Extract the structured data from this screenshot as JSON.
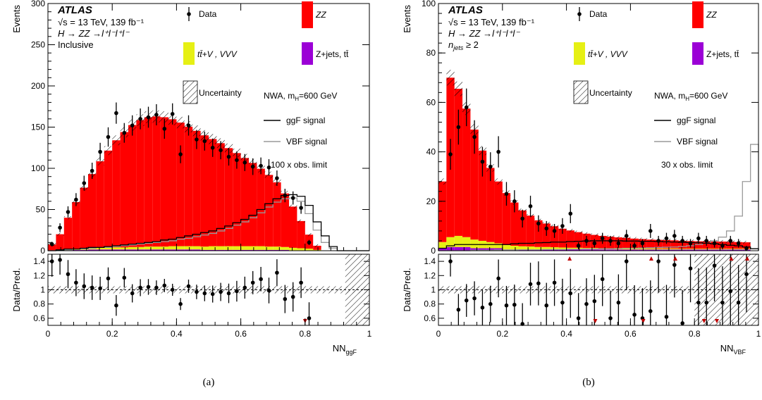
{
  "colors": {
    "zz": "#ff0000",
    "ttv": "#e6f014",
    "zjets": "#9b00d6",
    "ggf": "#000000",
    "vbf": "#9a9a9a"
  },
  "captions": [
    "(a)",
    "(b)"
  ],
  "chart_data": [
    {
      "type": "bar",
      "panel": "a",
      "atlas_label": "ATLAS",
      "energy_label": "√s = 13 TeV, 139 fb⁻¹",
      "process_label": "H → ZZ →l⁺l⁻l⁺l⁻",
      "region_label": "Inclusive",
      "model_label": "NWA, m_H=600 GeV",
      "model_label_parts": [
        "NWA, m",
        "H",
        "=600 GeV"
      ],
      "scale_label": "100 x obs. limit",
      "legend": {
        "data": "Data",
        "zz": "ZZ",
        "ttv": "tt̄+V , VVV",
        "zjets": "Z+jets, tt̄",
        "uncertainty": "Uncertainty",
        "ggf": "ggF signal",
        "vbf": "VBF signal"
      },
      "xlabel": "NN",
      "xlabel_sub": "ggF",
      "ylabel": "Events",
      "ratio_ylabel": "Data/Pred.",
      "xlim": [
        0,
        1
      ],
      "ylim": [
        0,
        300
      ],
      "ratio_ylim": [
        0.5,
        1.5
      ],
      "x_ticks": [
        0,
        0.2,
        0.4,
        0.6,
        0.8,
        1
      ],
      "x_tick_labels": [
        "0",
        "0.2",
        "0.4",
        "0.6",
        "0.8",
        "1"
      ],
      "y_ticks": [
        0,
        50,
        100,
        150,
        200,
        250,
        300
      ],
      "y_tick_labels": [
        "0",
        "50",
        "100",
        "150",
        "200",
        "250",
        "300"
      ],
      "ratio_y_ticks": [
        0.6,
        0.8,
        1,
        1.2,
        1.4
      ],
      "ratio_y_tick_labels": [
        "0.6",
        "0.8",
        "1",
        "1.2",
        "1.4"
      ],
      "bin_edges": [
        0,
        0.025,
        0.05,
        0.075,
        0.1,
        0.125,
        0.15,
        0.175,
        0.2,
        0.225,
        0.25,
        0.275,
        0.3,
        0.325,
        0.35,
        0.375,
        0.4,
        0.425,
        0.45,
        0.475,
        0.5,
        0.525,
        0.55,
        0.575,
        0.6,
        0.625,
        0.65,
        0.675,
        0.7,
        0.725,
        0.75,
        0.775,
        0.8,
        0.825,
        0.85,
        0.875,
        0.9,
        0.925,
        0.95,
        0.975,
        1
      ],
      "zz": [
        7,
        19,
        38,
        57,
        74,
        90,
        105,
        118,
        130,
        140,
        148,
        154,
        157,
        158,
        157,
        154,
        150,
        145,
        140,
        135,
        130,
        125,
        119,
        113,
        107,
        101,
        94,
        87,
        78,
        65,
        50,
        33,
        17,
        5,
        0,
        0,
        0,
        0,
        0,
        0
      ],
      "ttv": [
        0,
        0.5,
        1,
        1,
        1.5,
        1.5,
        2,
        2,
        2.5,
        2.5,
        3,
        3,
        3.5,
        3.5,
        3.5,
        4,
        4,
        4,
        4,
        4,
        4.5,
        4.5,
        4.5,
        4.5,
        4.5,
        4.5,
        4.5,
        4,
        4,
        3.5,
        3,
        2.5,
        2,
        1,
        0,
        0,
        0,
        0,
        0,
        0
      ],
      "zjets": [
        0.5,
        0.5,
        1,
        1,
        1,
        1.5,
        1.5,
        1.5,
        1.5,
        1.5,
        1.5,
        1.5,
        1.5,
        1.5,
        1.5,
        1.5,
        1.5,
        1.5,
        1.5,
        1,
        1,
        1,
        1,
        1,
        1,
        1,
        1,
        1,
        1,
        1,
        0.5,
        0.5,
        0.5,
        0,
        0,
        0,
        0,
        0,
        0,
        0
      ],
      "ggf": [
        0,
        1,
        2,
        2,
        3,
        4,
        4,
        5,
        6,
        7,
        8,
        9,
        10,
        11,
        13,
        14,
        16,
        18,
        20,
        22,
        24,
        27,
        30,
        34,
        38,
        43,
        50,
        57,
        63,
        67,
        68,
        66,
        55,
        35,
        18,
        5,
        0,
        0,
        0,
        0
      ],
      "vbf": [
        0,
        1,
        1,
        2,
        2,
        3,
        4,
        4,
        5,
        6,
        7,
        8,
        9,
        10,
        11,
        12,
        14,
        15,
        17,
        19,
        21,
        24,
        27,
        31,
        35,
        40,
        46,
        53,
        59,
        63,
        64,
        60,
        45,
        25,
        10,
        3,
        0,
        0,
        0,
        0
      ],
      "data_x": [
        0.0125,
        0.0375,
        0.0625,
        0.0875,
        0.1125,
        0.1375,
        0.1625,
        0.1875,
        0.2125,
        0.2375,
        0.2625,
        0.2875,
        0.3125,
        0.3375,
        0.3625,
        0.3875,
        0.4125,
        0.4375,
        0.4625,
        0.4875,
        0.5125,
        0.5375,
        0.5625,
        0.5875,
        0.6125,
        0.6375,
        0.6625,
        0.6875,
        0.7125,
        0.7375,
        0.7625,
        0.7875,
        0.8125
      ],
      "data_y": [
        8,
        28,
        47,
        62,
        82,
        97,
        120,
        138,
        167,
        143,
        152,
        160,
        162,
        165,
        148,
        166,
        117,
        152,
        135,
        133,
        125,
        122,
        114,
        110,
        107,
        102,
        103,
        101,
        88,
        67,
        64,
        52,
        10
      ],
      "ratio_x": [
        0.0125,
        0.0375,
        0.0625,
        0.0875,
        0.1125,
        0.1375,
        0.1625,
        0.1875,
        0.2125,
        0.2375,
        0.2625,
        0.2875,
        0.3125,
        0.3375,
        0.3625,
        0.3875,
        0.4125,
        0.4375,
        0.4625,
        0.4875,
        0.5125,
        0.5375,
        0.5625,
        0.5875,
        0.6125,
        0.6375,
        0.6625,
        0.6875,
        0.7125,
        0.7375,
        0.7625,
        0.7875,
        0.8125
      ],
      "ratio_y": [
        1.4,
        1.42,
        1.22,
        1.1,
        1.05,
        1.03,
        1.02,
        1.16,
        0.78,
        1.17,
        0.95,
        1.03,
        1.04,
        1.03,
        1.06,
        1.0,
        0.8,
        1.05,
        0.97,
        0.95,
        0.94,
        0.97,
        0.95,
        0.98,
        1.03,
        1.1,
        1.15,
        0.99,
        1.24,
        0.87,
        0.9,
        1.1,
        0.6
      ],
      "ratio_down_arrows_x": [
        0.8
      ]
    },
    {
      "type": "bar",
      "panel": "b",
      "atlas_label": "ATLAS",
      "energy_label": "√s = 13 TeV, 139 fb⁻¹",
      "process_label": "H → ZZ →l⁺l⁻l⁺l⁻",
      "region_label": "n_jets ≥ 2",
      "region_label_parts": [
        "n",
        "jets",
        " ≥ 2"
      ],
      "model_label": "NWA, m_H=600 GeV",
      "model_label_parts": [
        "NWA, m",
        "H",
        "=600 GeV"
      ],
      "scale_label": "30 x obs. limit",
      "legend": {
        "data": "Data",
        "zz": "ZZ",
        "ttv": "tt̄+V , VVV",
        "zjets": "Z+jets, tt̄",
        "uncertainty": "Uncertainty",
        "ggf": "ggF signal",
        "vbf": "VBF signal"
      },
      "xlabel": "NN",
      "xlabel_sub": "VBF",
      "ylabel": "Events",
      "ratio_ylabel": "Data/Pred.",
      "xlim": [
        0,
        1
      ],
      "ylim": [
        0,
        100
      ],
      "ratio_ylim": [
        0.5,
        1.5
      ],
      "x_ticks": [
        0,
        0.2,
        0.4,
        0.6,
        0.8,
        1
      ],
      "x_tick_labels": [
        "0",
        "0.2",
        "0.4",
        "0.6",
        "0.8",
        "1"
      ],
      "y_ticks": [
        0,
        20,
        40,
        60,
        80,
        100
      ],
      "y_tick_labels": [
        "0",
        "20",
        "40",
        "60",
        "80",
        "100"
      ],
      "ratio_y_ticks": [
        0.6,
        0.8,
        1,
        1.2,
        1.4
      ],
      "ratio_y_tick_labels": [
        "0.6",
        "0.8",
        "1",
        "1.2",
        "1.4"
      ],
      "bin_edges": [
        0,
        0.025,
        0.05,
        0.075,
        0.1,
        0.125,
        0.15,
        0.175,
        0.2,
        0.225,
        0.25,
        0.275,
        0.3,
        0.325,
        0.35,
        0.375,
        0.4,
        0.425,
        0.45,
        0.475,
        0.5,
        0.525,
        0.55,
        0.575,
        0.6,
        0.625,
        0.65,
        0.675,
        0.7,
        0.725,
        0.75,
        0.775,
        0.8,
        0.825,
        0.85,
        0.875,
        0.9,
        0.925,
        0.95,
        0.975,
        1
      ],
      "zz": [
        24.5,
        64.5,
        59.5,
        52,
        44.5,
        36.5,
        30,
        25,
        21,
        17.5,
        14.5,
        12.5,
        10.8,
        9.5,
        8.5,
        7.6,
        7,
        6.3,
        5.8,
        5.3,
        5,
        4.7,
        4.4,
        4.2,
        4,
        3.8,
        3.6,
        3.5,
        3.4,
        3.3,
        3.2,
        3.1,
        3,
        3,
        2.9,
        2.9,
        2.8,
        2.7,
        2.6,
        0
      ],
      "ttv": [
        2.5,
        4,
        4.5,
        4,
        3.5,
        3,
        2.5,
        2,
        1.8,
        1.5,
        1.3,
        1.2,
        1,
        1,
        0.9,
        0.8,
        0.7,
        0.7,
        0.6,
        0.6,
        0.5,
        0.5,
        0.5,
        0.5,
        0.4,
        0.4,
        0.4,
        0.4,
        0.4,
        0.4,
        0.3,
        0.3,
        0.3,
        0.3,
        0.3,
        0.3,
        0.3,
        0.3,
        0.3,
        0
      ],
      "zjets": [
        1,
        1.5,
        1.5,
        1.5,
        1,
        1,
        1,
        1,
        0.5,
        0.5,
        0.5,
        0.5,
        0.5,
        0.5,
        0.5,
        0.5,
        0.5,
        0.5,
        0.5,
        0.5,
        0.5,
        0.5,
        0.5,
        0.5,
        0.5,
        0.5,
        0.5,
        0.5,
        0.5,
        0.5,
        0.5,
        0.5,
        0.5,
        0.5,
        0.5,
        0.5,
        0.5,
        0.5,
        0.5,
        0
      ],
      "ggf": [
        1,
        2,
        2.5,
        2.5,
        2.5,
        2.5,
        2.5,
        2.5,
        2.5,
        2.8,
        3,
        3,
        3.2,
        3.3,
        3.5,
        3.5,
        3.7,
        3.8,
        3.9,
        4,
        4,
        4,
        4,
        3.9,
        3.9,
        3.8,
        3.8,
        3.7,
        3.6,
        3.5,
        3.4,
        3.3,
        3.2,
        3,
        2.8,
        2.5,
        2.2,
        2,
        1.5,
        0.8
      ],
      "vbf": [
        0,
        0,
        0,
        0,
        0.2,
        0.2,
        0.2,
        0.3,
        0.3,
        0.3,
        0.4,
        0.4,
        0.4,
        0.5,
        0.5,
        0.5,
        0.6,
        0.6,
        0.7,
        0.7,
        0.8,
        0.8,
        0.9,
        1,
        1,
        1.1,
        1.2,
        1.3,
        1.4,
        1.5,
        1.7,
        2,
        2.5,
        3,
        4,
        5.5,
        8,
        14,
        28,
        43
      ],
      "data_x": [
        0.0375,
        0.0625,
        0.0875,
        0.1125,
        0.1375,
        0.1625,
        0.1875,
        0.2125,
        0.2375,
        0.2625,
        0.2875,
        0.3125,
        0.3375,
        0.3625,
        0.3875,
        0.4125,
        0.4375,
        0.4625,
        0.4875,
        0.5125,
        0.5375,
        0.5625,
        0.5875,
        0.6125,
        0.6375,
        0.6625,
        0.6875,
        0.7125,
        0.7375,
        0.7625,
        0.7875,
        0.8125,
        0.8375,
        0.8625,
        0.8875,
        0.9125,
        0.9375,
        0.9625
      ],
      "data_y": [
        39,
        50,
        58,
        46,
        36,
        34,
        40,
        23,
        20,
        13,
        18,
        11,
        9,
        8,
        10,
        15,
        2,
        4,
        3,
        5,
        4,
        3,
        6,
        2,
        3,
        8,
        4,
        5,
        6,
        4,
        3,
        5,
        4,
        3,
        2,
        4,
        3,
        1
      ],
      "ratio_x": [
        0.0375,
        0.0625,
        0.0875,
        0.1125,
        0.1375,
        0.1625,
        0.1875,
        0.2125,
        0.2375,
        0.2625,
        0.2875,
        0.3125,
        0.3375,
        0.3625,
        0.3875,
        0.4125,
        0.4375,
        0.4625,
        0.4875,
        0.5125,
        0.5375,
        0.5625,
        0.5875,
        0.6125,
        0.6375,
        0.6625,
        0.6875,
        0.7125,
        0.7375,
        0.7625,
        0.7875,
        0.8125,
        0.8375,
        0.8625,
        0.8875,
        0.9125,
        0.9375,
        0.9625
      ],
      "ratio_y": [
        1.4,
        0.72,
        0.85,
        0.88,
        0.75,
        0.8,
        1.16,
        0.78,
        0.79,
        0.52,
        1.08,
        1.09,
        0.78,
        1.1,
        0.82,
        0.95,
        0.6,
        0.8,
        0.84,
        1.15,
        0.6,
        0.82,
        1.4,
        0.65,
        0.6,
        0.7,
        1.4,
        0.62,
        1.35,
        0.53,
        1.3,
        0.82,
        0.82,
        1.34,
        0.82,
        0.98,
        0.82,
        1.22
      ],
      "ratio_up_arrows_x": [
        0.41,
        0.665,
        0.74,
        0.915,
        0.965
      ],
      "ratio_down_arrows_x": [
        0.49,
        0.64,
        0.83,
        0.87
      ]
    }
  ]
}
